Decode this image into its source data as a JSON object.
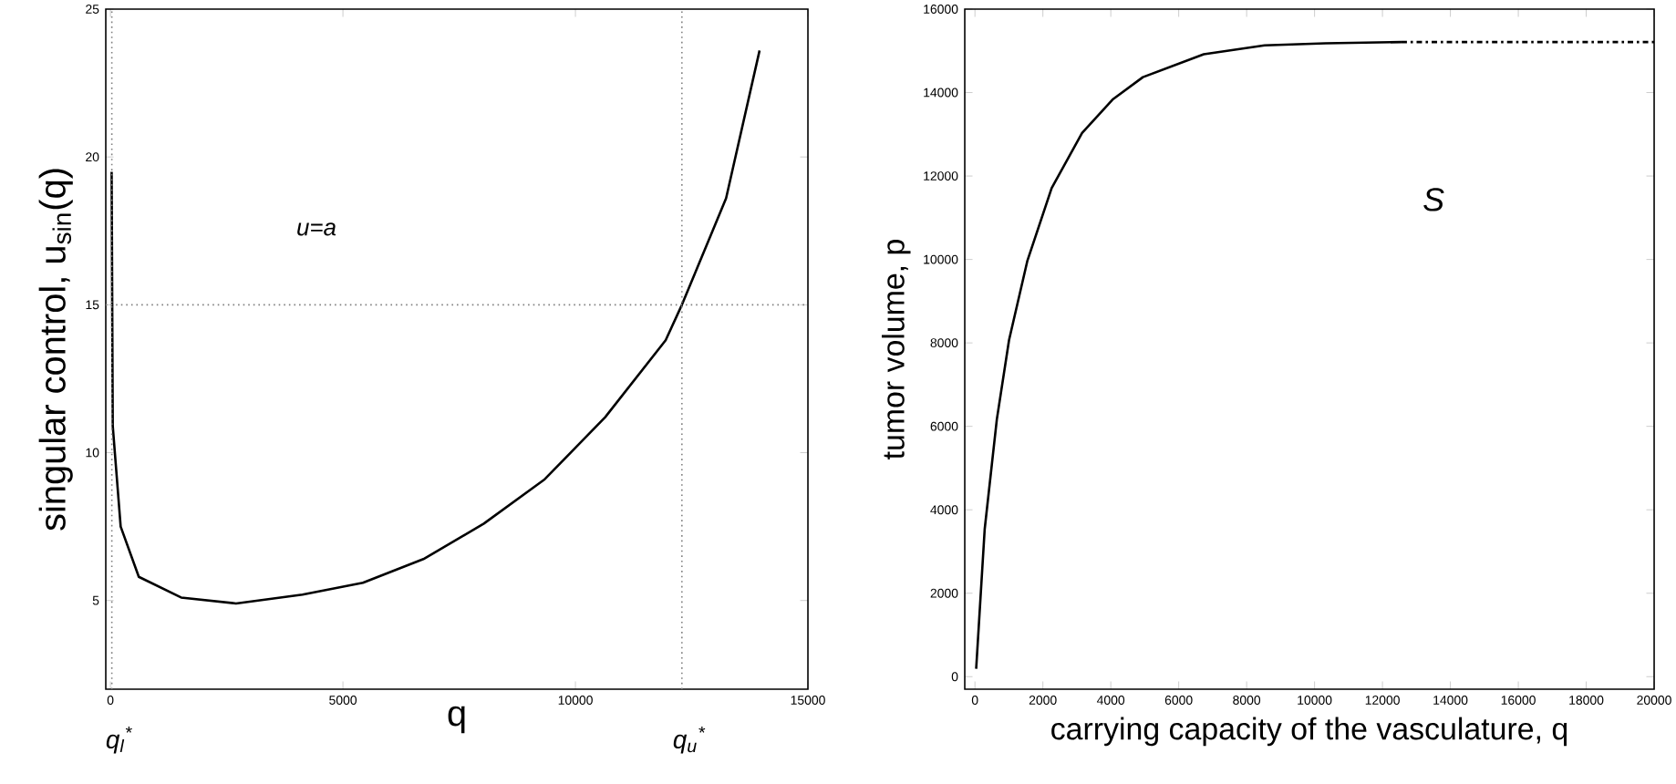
{
  "chart_data": [
    {
      "type": "line",
      "xlabel": "q",
      "ylabel": "singular control, u$_{sin}$(q)",
      "xlim": [
        -100,
        15000
      ],
      "ylim": [
        2,
        25
      ],
      "xticks": [
        0,
        5000,
        10000,
        15000
      ],
      "yticks": [
        5,
        10,
        15,
        20,
        25
      ],
      "series": [
        {
          "color": "#000000",
          "line_style": "solid",
          "x": [
            26,
            50,
            220,
            610,
            1520,
            2700,
            4130,
            5430,
            6730,
            8030,
            9340,
            10640,
            11940,
            12290,
            13240,
            13960
          ],
          "values": [
            19.5,
            10.9,
            7.5,
            5.8,
            5.1,
            4.9,
            5.2,
            5.6,
            6.4,
            7.6,
            9.1,
            11.2,
            13.8,
            15,
            18.6,
            23.6
          ]
        }
      ],
      "ref_lines": [
        {
          "axis": "y",
          "value": 15,
          "label": "u=a",
          "color": "#808080",
          "line_style": "dotted"
        },
        {
          "axis": "x",
          "value": 30,
          "label": "q$_{l}$$^{*}$",
          "color": "#808080",
          "line_style": "dotted"
        },
        {
          "axis": "x",
          "value": 12290,
          "label": "q$_{u}$$^{*}$",
          "color": "#808080",
          "line_style": "dotted"
        }
      ]
    },
    {
      "type": "line",
      "xlabel": "carrying capacity of the vasculature, q",
      "ylabel": "tumor volume, p",
      "xlim": [
        -300,
        20000
      ],
      "ylim": [
        -300,
        16000
      ],
      "xticks": [
        0,
        2000,
        4000,
        6000,
        8000,
        10000,
        12000,
        14000,
        16000,
        18000,
        20000
      ],
      "yticks": [
        0,
        2000,
        4000,
        6000,
        8000,
        10000,
        12000,
        14000,
        16000
      ],
      "series": [
        {
          "color": "#000000",
          "line_style": "solid",
          "x": [
            36,
            287,
            645,
            1004,
            1541,
            2258,
            3154,
            4050,
            4946,
            6738,
            8530,
            10320,
            12560
          ],
          "values": [
            190,
            3540,
            6170,
            8070,
            9960,
            11710,
            13030,
            13830,
            14370,
            14920,
            15130,
            15180,
            15210
          ]
        },
        {
          "color": "#000000",
          "line_style": "dashdot",
          "x": [
            12560,
            20000
          ],
          "values": [
            15210,
            15210
          ]
        }
      ],
      "annotations": [
        "S"
      ]
    }
  ]
}
